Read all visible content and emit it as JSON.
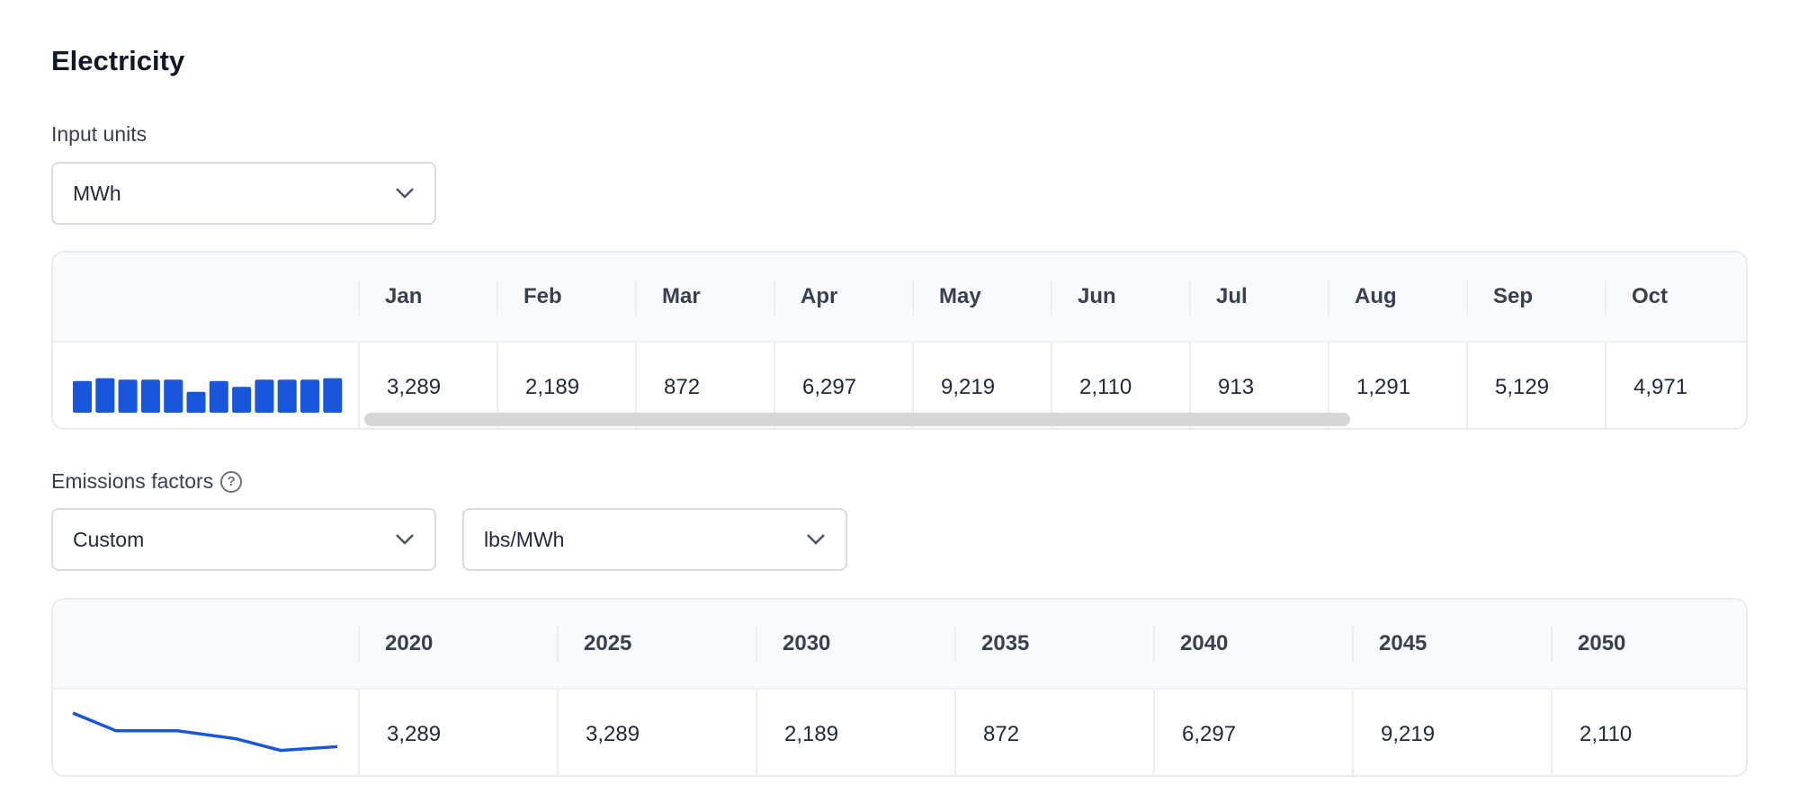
{
  "section_title": "Electricity",
  "input_units": {
    "label": "Input units",
    "value": "MWh"
  },
  "usage_table": {
    "months": [
      "Jan",
      "Feb",
      "Mar",
      "Apr",
      "May",
      "Jun",
      "Jul",
      "Aug",
      "Sep",
      "Oct"
    ],
    "values": [
      "3,289",
      "2,189",
      "872",
      "6,297",
      "9,219",
      "2,110",
      "913",
      "1,291",
      "5,129",
      "4,971"
    ],
    "sparkbar_levels": [
      0.88,
      0.96,
      0.92,
      0.92,
      0.92,
      0.58,
      0.88,
      0.72,
      0.92,
      0.92,
      0.92,
      0.96
    ],
    "accent": "#1a56db"
  },
  "emissions_factors": {
    "label": "Emissions factors",
    "help_icon": "question-circle-icon",
    "source_value": "Custom",
    "unit_value": "lbs/MWh"
  },
  "factors_table": {
    "years": [
      "2020",
      "2025",
      "2030",
      "2035",
      "2040",
      "2045",
      "2050"
    ],
    "values": [
      "3,289",
      "3,289",
      "2,189",
      "872",
      "6,297",
      "9,219",
      "2,110"
    ],
    "sparkline_levels": [
      1.0,
      0.62,
      0.62,
      0.45,
      0.2,
      0.28
    ]
  }
}
